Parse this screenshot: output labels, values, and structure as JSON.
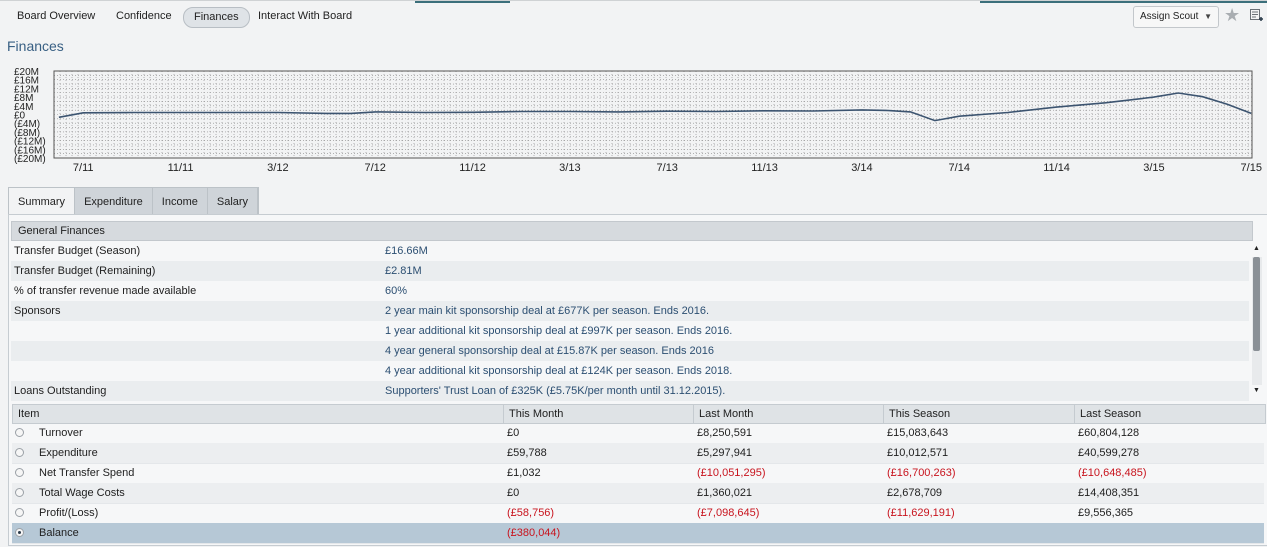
{
  "nav": {
    "tabs": [
      {
        "label": "Board Overview"
      },
      {
        "label": "Confidence"
      },
      {
        "label": "Finances"
      },
      {
        "label": "Interact With Board"
      }
    ],
    "active": "Finances",
    "assign_scout": "Assign Scout",
    "star_icon": "star-icon",
    "notes_icon": "notes-icon"
  },
  "page_title": "Finances",
  "chart_data": {
    "type": "line",
    "title": "",
    "ylim": [
      -20,
      20
    ],
    "y_ticks": [
      "£20M",
      "£16M",
      "£12M",
      "£8M",
      "£4M",
      "£0",
      "(£4M)",
      "(£8M)",
      "(£12M)",
      "(£16M)",
      "(£20M)"
    ],
    "x_ticks": [
      "7/11",
      "11/11",
      "3/12",
      "7/12",
      "11/12",
      "3/13",
      "7/13",
      "11/13",
      "3/14",
      "7/14",
      "11/14",
      "3/15",
      "7/15"
    ],
    "grid": true,
    "line_color": "#3c5470",
    "series": [
      {
        "points": [
          [
            "6/11",
            -1.3
          ],
          [
            "7/11",
            0.8
          ],
          [
            "9/11",
            0.9
          ],
          [
            "11/11",
            0.9
          ],
          [
            "1/12",
            0.9
          ],
          [
            "3/12",
            0.9
          ],
          [
            "5/12",
            0.5
          ],
          [
            "6/12",
            0.5
          ],
          [
            "7/12",
            1.2
          ],
          [
            "9/12",
            0.9
          ],
          [
            "11/12",
            1.0
          ],
          [
            "1/13",
            1.4
          ],
          [
            "3/13",
            1.4
          ],
          [
            "5/13",
            1.2
          ],
          [
            "7/13",
            1.5
          ],
          [
            "9/13",
            1.4
          ],
          [
            "11/13",
            1.7
          ],
          [
            "1/14",
            1.6
          ],
          [
            "3/14",
            2.1
          ],
          [
            "4/14",
            1.9
          ],
          [
            "5/14",
            1.2
          ],
          [
            "6/14",
            -2.8
          ],
          [
            "7/14",
            -0.8
          ],
          [
            "9/14",
            0.9
          ],
          [
            "11/14",
            3.4
          ],
          [
            "1/15",
            5.4
          ],
          [
            "3/15",
            8.0
          ],
          [
            "4/15",
            9.9
          ],
          [
            "5/15",
            8.2
          ],
          [
            "6/15",
            4.8
          ],
          [
            "7/15",
            0.5
          ]
        ]
      }
    ]
  },
  "subtabs": [
    {
      "label": "Summary"
    },
    {
      "label": "Expenditure"
    },
    {
      "label": "Income"
    },
    {
      "label": "Salary"
    }
  ],
  "general": {
    "header": "General Finances",
    "rows": [
      {
        "label": "Transfer Budget (Season)",
        "value": "£16.66M"
      },
      {
        "label": "Transfer Budget (Remaining)",
        "value": "£2.81M"
      },
      {
        "label": "% of transfer revenue made available",
        "value": "60%"
      },
      {
        "label": "Sponsors",
        "value": "2 year main kit sponsorship deal at £677K per season. Ends 2016."
      },
      {
        "label": "",
        "value": "1 year additional kit sponsorship deal at £997K per season. Ends 2016."
      },
      {
        "label": "",
        "value": "4 year general sponsorship deal at £15.87K per season. Ends 2016"
      },
      {
        "label": "",
        "value": "4 year additional kit sponsorship deal at £124K per season. Ends 2018."
      },
      {
        "label": "Loans Outstanding",
        "value": "Supporters' Trust Loan of £325K (£5.75K/per month until 31.12.2015)."
      }
    ]
  },
  "table": {
    "headers": [
      "Item",
      "This Month",
      "Last Month",
      "This Season",
      "Last Season"
    ],
    "rows": [
      {
        "item": "Turnover",
        "cells": [
          "£0",
          "£8,250,591",
          "£15,083,643",
          "£60,804,128"
        ],
        "neg": [
          false,
          false,
          false,
          false
        ]
      },
      {
        "item": "Expenditure",
        "cells": [
          "£59,788",
          "£5,297,941",
          "£10,012,571",
          "£40,599,278"
        ],
        "neg": [
          false,
          false,
          false,
          false
        ]
      },
      {
        "item": "Net Transfer Spend",
        "cells": [
          "£1,032",
          "(£10,051,295)",
          "(£16,700,263)",
          "(£10,648,485)"
        ],
        "neg": [
          false,
          true,
          true,
          true
        ]
      },
      {
        "item": "Total Wage Costs",
        "cells": [
          "£0",
          "£1,360,021",
          "£2,678,709",
          "£14,408,351"
        ],
        "neg": [
          false,
          false,
          false,
          false
        ]
      },
      {
        "item": "Profit/(Loss)",
        "cells": [
          "(£58,756)",
          "(£7,098,645)",
          "(£11,629,191)",
          "£9,556,365"
        ],
        "neg": [
          true,
          true,
          true,
          false
        ]
      },
      {
        "item": "Balance",
        "cells": [
          "(£380,044)",
          "",
          "",
          ""
        ],
        "neg": [
          true,
          false,
          false,
          false
        ]
      }
    ],
    "selected_row": 5
  }
}
